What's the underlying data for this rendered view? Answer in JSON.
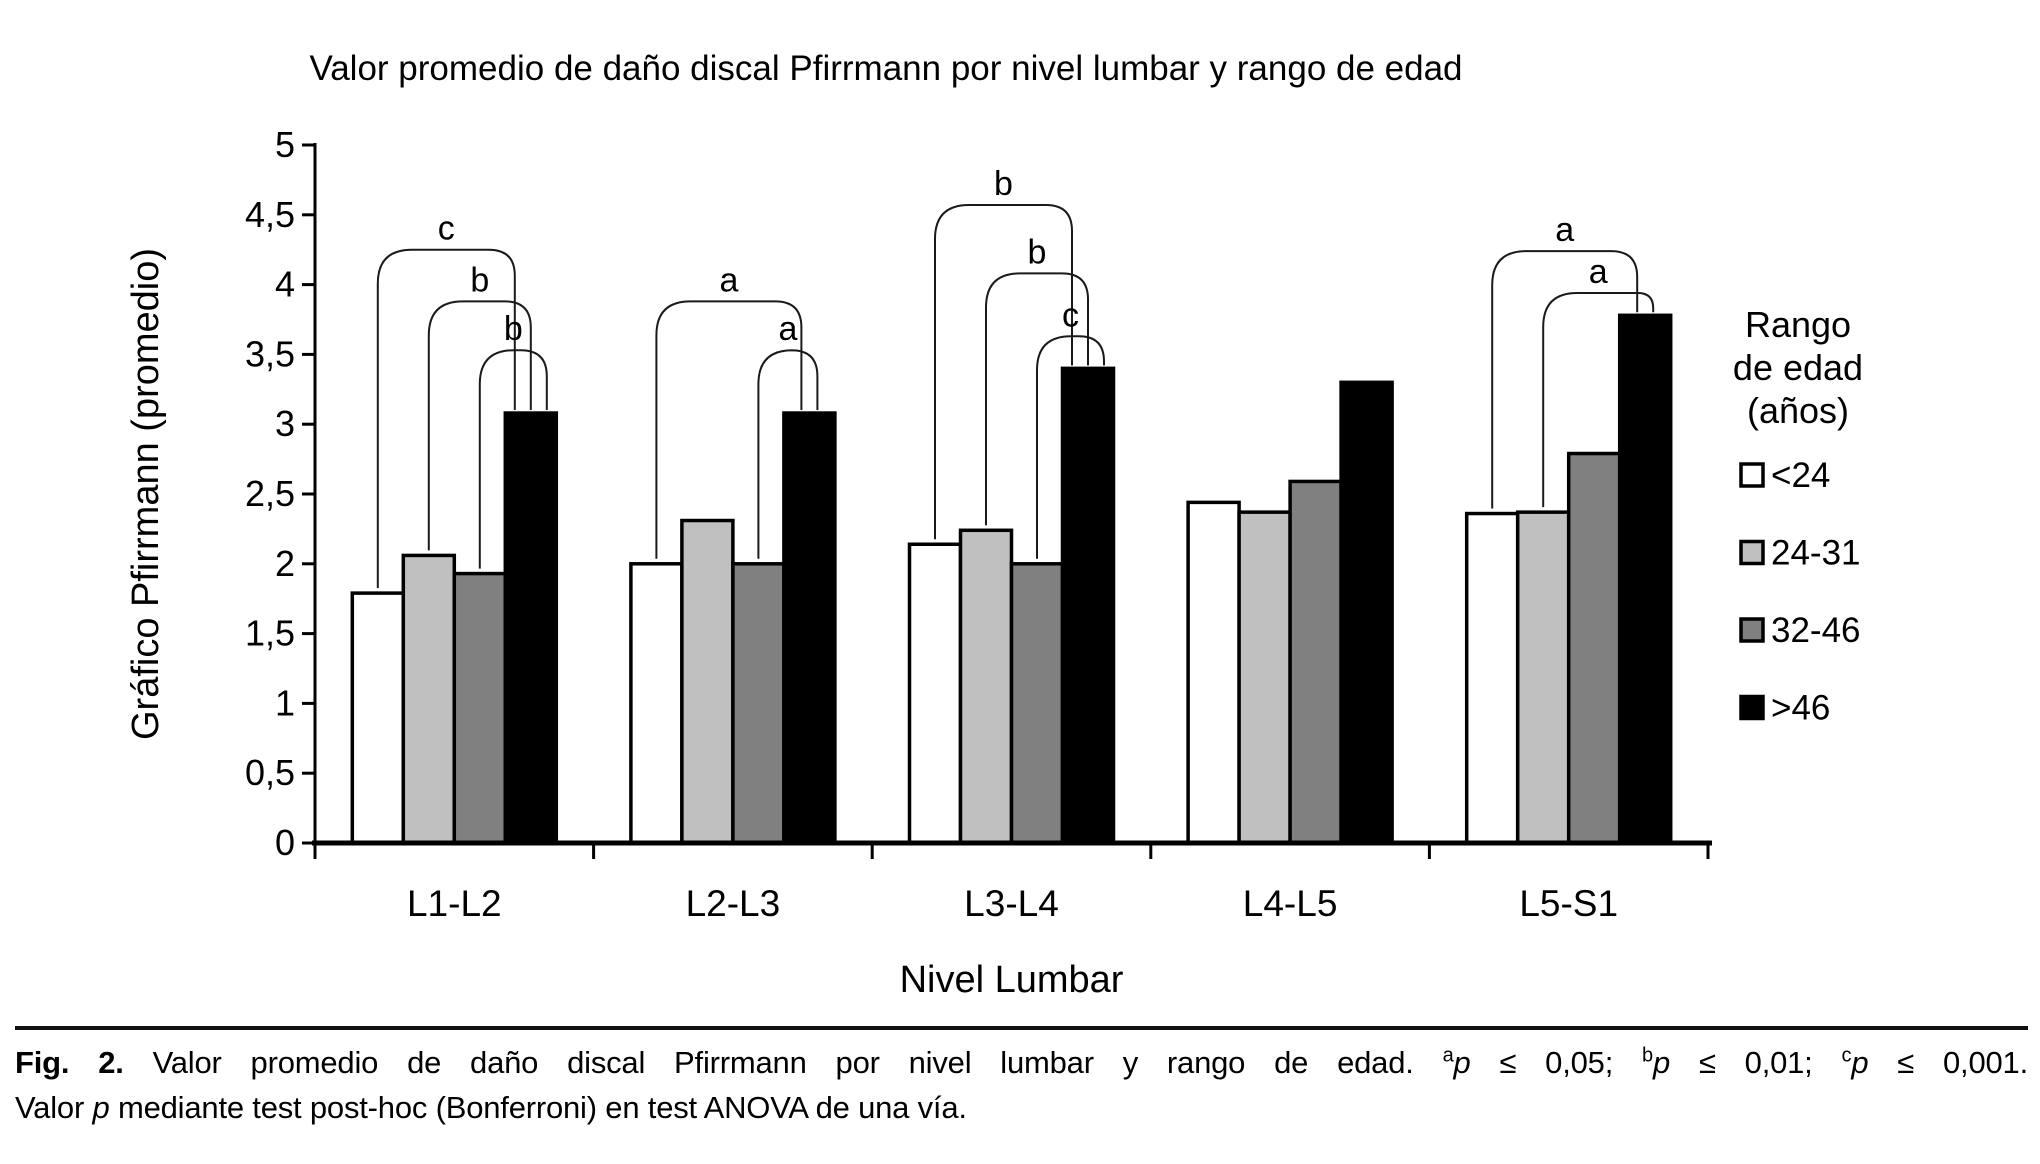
{
  "chart_data": {
    "type": "bar",
    "title": "Valor promedio de daño discal Pfirrmann por nivel lumbar y rango de edad",
    "xlabel": "Nivel Lumbar",
    "ylabel": "Gráfico Pfirrmann (promedio)",
    "ylim": [
      0,
      5
    ],
    "ytick_step": 0.5,
    "ytick_labels": [
      "0",
      "0,5",
      "1",
      "1,5",
      "2",
      "2,5",
      "3",
      "3,5",
      "4",
      "4,5",
      "5"
    ],
    "categories": [
      "L1-L2",
      "L2-L3",
      "L3-L4",
      "L4-L5",
      "L5-S1"
    ],
    "series": [
      {
        "name": "<24",
        "color": "#ffffff",
        "values": [
          1.79,
          2.0,
          2.14,
          2.44,
          2.36
        ]
      },
      {
        "name": "24-31",
        "color": "#c0c0c0",
        "values": [
          2.06,
          2.31,
          2.24,
          2.37,
          2.37
        ]
      },
      {
        "name": "32-46",
        "color": "#808080",
        "values": [
          1.93,
          2.0,
          2.0,
          2.59,
          2.79
        ]
      },
      {
        "name": ">46",
        "color": "#000000",
        "values": [
          3.08,
          3.08,
          3.4,
          3.3,
          3.78
        ]
      }
    ],
    "legend_title_lines": [
      "Rango",
      "de edad",
      "(años)"
    ],
    "legend_position": "right",
    "grid": false,
    "brackets": [
      {
        "group": 0,
        "from": 0,
        "to": 3,
        "label": "c",
        "top": 4.25
      },
      {
        "group": 0,
        "from": 1,
        "to": 3,
        "label": "b",
        "top": 3.88
      },
      {
        "group": 0,
        "from": 2,
        "to": 3,
        "label": "b",
        "top": 3.53
      },
      {
        "group": 1,
        "from": 0,
        "to": 3,
        "label": "a",
        "top": 3.88
      },
      {
        "group": 1,
        "from": 2,
        "to": 3,
        "label": "a",
        "top": 3.53
      },
      {
        "group": 2,
        "from": 0,
        "to": 3,
        "label": "b",
        "top": 4.57
      },
      {
        "group": 2,
        "from": 1,
        "to": 3,
        "label": "b",
        "top": 4.08
      },
      {
        "group": 2,
        "from": 2,
        "to": 3,
        "label": "c",
        "top": 3.63
      },
      {
        "group": 4,
        "from": 0,
        "to": 3,
        "label": "a",
        "top": 4.24
      },
      {
        "group": 4,
        "from": 1,
        "to": 3,
        "label": "a",
        "top": 3.94
      }
    ]
  },
  "caption": {
    "fig_label": "Fig. 2.",
    "body": "Valor promedio de daño discal Pfirrmann por nivel lumbar y rango de edad.",
    "stats": [
      {
        "sup": "a",
        "var": "p",
        "rel": "≤ 0,05;"
      },
      {
        "sup": "b",
        "var": "p",
        "rel": "≤ 0,01;"
      },
      {
        "sup": "c",
        "var": "p",
        "rel": "≤ 0,001."
      }
    ],
    "line2_pre": "Valor",
    "line2_var": "p",
    "line2_post": "mediante test post-hoc (Bonferroni) en test ANOVA de una vía."
  }
}
